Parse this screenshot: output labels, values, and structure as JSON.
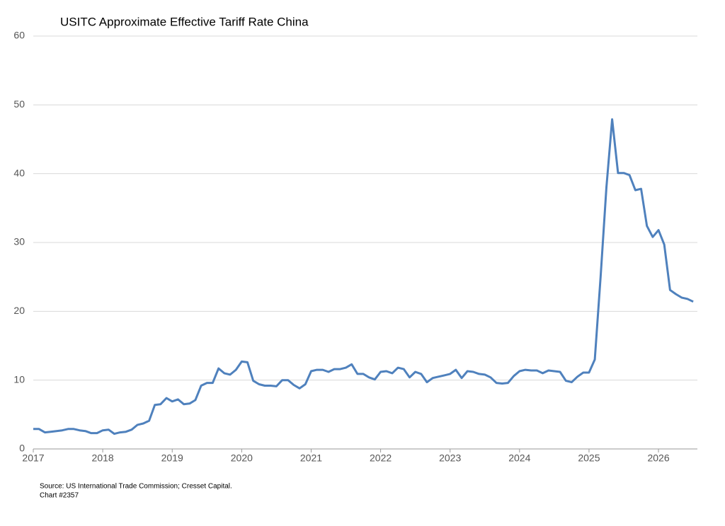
{
  "chart_data": {
    "type": "line",
    "title": "USITC Approximate Effective Tariff Rate China",
    "source": "Source: US International Trade Commission; Cresset Capital.",
    "note": "Chart #2357",
    "x": [
      2017,
      2017.083,
      2017.167,
      2017.25,
      2017.333,
      2017.417,
      2017.5,
      2017.583,
      2017.667,
      2017.75,
      2017.833,
      2017.917,
      2018,
      2018.083,
      2018.167,
      2018.25,
      2018.333,
      2018.417,
      2018.5,
      2018.583,
      2018.667,
      2018.75,
      2018.833,
      2018.917,
      2019,
      2019.083,
      2019.167,
      2019.25,
      2019.333,
      2019.417,
      2019.5,
      2019.583,
      2019.667,
      2019.75,
      2019.833,
      2019.917,
      2020,
      2020.083,
      2020.167,
      2020.25,
      2020.333,
      2020.417,
      2020.5,
      2020.583,
      2020.667,
      2020.75,
      2020.833,
      2020.917,
      2021,
      2021.083,
      2021.167,
      2021.25,
      2021.333,
      2021.417,
      2021.5,
      2021.583,
      2021.667,
      2021.75,
      2021.833,
      2021.917,
      2022,
      2022.083,
      2022.167,
      2022.25,
      2022.333,
      2022.417,
      2022.5,
      2022.583,
      2022.667,
      2022.75,
      2022.833,
      2022.917,
      2023,
      2023.083,
      2023.167,
      2023.25,
      2023.333,
      2023.417,
      2023.5,
      2023.583,
      2023.667,
      2023.75,
      2023.833,
      2023.917,
      2024,
      2024.083,
      2024.167,
      2024.25,
      2024.333,
      2024.417,
      2024.5,
      2024.583,
      2024.667,
      2024.75,
      2024.833,
      2024.917,
      2025,
      2025.083,
      2025.167,
      2025.25,
      2025.333,
      2025.417,
      2025.5,
      2025.583,
      2025.667,
      2025.75,
      2025.833,
      2025.917,
      2026,
      2026.083,
      2026.167,
      2026.25,
      2026.333,
      2026.417,
      2026.5
    ],
    "series": [
      {
        "color": "#4f81bd",
        "values": [
          2.9,
          2.9,
          2.4,
          2.5,
          2.6,
          2.7,
          2.9,
          2.9,
          2.7,
          2.6,
          2.3,
          2.3,
          2.7,
          2.8,
          2.2,
          2.4,
          2.5,
          2.8,
          3.5,
          3.7,
          4.1,
          6.4,
          6.5,
          7.4,
          6.9,
          7.2,
          6.5,
          6.6,
          7.1,
          9.2,
          9.6,
          9.6,
          11.7,
          11.0,
          10.8,
          11.5,
          12.7,
          12.6,
          9.9,
          9.4,
          9.2,
          9.2,
          9.1,
          10.0,
          10.0,
          9.3,
          8.8,
          9.4,
          11.3,
          11.5,
          11.5,
          11.2,
          11.6,
          11.6,
          11.8,
          12.3,
          10.9,
          10.9,
          10.4,
          10.1,
          11.2,
          11.3,
          11.0,
          11.8,
          11.6,
          10.4,
          11.2,
          10.9,
          9.7,
          10.3,
          10.5,
          10.7,
          10.9,
          11.5,
          10.3,
          11.3,
          11.2,
          10.9,
          10.8,
          10.4,
          9.6,
          9.5,
          9.6,
          10.6,
          11.3,
          11.5,
          11.4,
          11.4,
          11.0,
          11.4,
          11.3,
          11.2,
          9.9,
          9.7,
          10.5,
          11.1,
          11.1,
          13.0,
          25.0,
          38.0,
          47.9,
          40.1,
          40.1,
          39.8,
          37.6,
          37.8,
          32.4,
          30.8,
          31.8,
          29.7,
          23.1,
          22.5,
          22.0,
          21.8,
          21.4
        ]
      }
    ],
    "xlim": [
      2017,
      2026.56
    ],
    "xticks": [
      2017,
      2018,
      2019,
      2020,
      2021,
      2022,
      2023,
      2024,
      2025,
      2026
    ],
    "ylim": [
      0,
      60
    ],
    "yticks": [
      0,
      10,
      20,
      30,
      40,
      50,
      60
    ],
    "grid": true
  }
}
